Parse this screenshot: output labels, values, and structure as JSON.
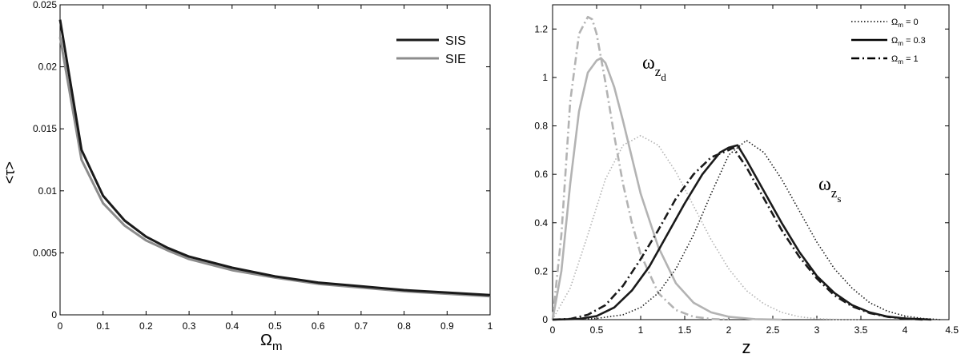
{
  "chart_data": [
    {
      "type": "line",
      "title": "",
      "xlabel": "Ω",
      "xlabel_sub": "m",
      "ylabel": "<τ>",
      "xlim": [
        0,
        1
      ],
      "ylim": [
        0,
        0.025
      ],
      "xticks": [
        0,
        0.1,
        0.2,
        0.3,
        0.4,
        0.5,
        0.6,
        0.7,
        0.8,
        0.9,
        1
      ],
      "xtick_labels": [
        "0",
        "0.1",
        "0.2",
        "0.3",
        "0.4",
        "0.5",
        "0.6",
        "0.7",
        "0.8",
        "0.9",
        "1"
      ],
      "yticks": [
        0,
        0.005,
        0.01,
        0.015,
        0.02,
        0.025
      ],
      "ytick_labels": [
        "0",
        "0.005",
        "0.01",
        "0.015",
        "0.02",
        "0.025"
      ],
      "legend_position": "top-right",
      "x": [
        0,
        0.05,
        0.1,
        0.15,
        0.2,
        0.25,
        0.3,
        0.4,
        0.5,
        0.6,
        0.7,
        0.8,
        0.9,
        1.0
      ],
      "series": [
        {
          "name": "SIS",
          "color": "#1a1a1a",
          "dash": "solid",
          "values": [
            0.0238,
            0.0133,
            0.0096,
            0.0076,
            0.0063,
            0.0054,
            0.0047,
            0.0038,
            0.0031,
            0.0026,
            0.0023,
            0.002,
            0.0018,
            0.0016
          ]
        },
        {
          "name": "SIE",
          "color": "#8c8c8c",
          "dash": "solid",
          "values": [
            0.0224,
            0.0125,
            0.009,
            0.0072,
            0.006,
            0.0052,
            0.0045,
            0.0036,
            0.003,
            0.0025,
            0.0022,
            0.0019,
            0.0017,
            0.0015
          ]
        }
      ]
    },
    {
      "type": "line",
      "title": "",
      "xlabel": "z",
      "ylabel": "",
      "xlim": [
        0,
        4.5
      ],
      "ylim": [
        0,
        1.3
      ],
      "xticks": [
        0,
        0.5,
        1,
        1.5,
        2,
        2.5,
        3,
        3.5,
        4,
        4.5
      ],
      "xtick_labels": [
        "0",
        "0.5",
        "1",
        "1.5",
        "2",
        "2.5",
        "3",
        "3.5",
        "4",
        "4.5"
      ],
      "yticks": [
        0,
        0.2,
        0.4,
        0.6,
        0.8,
        1,
        1.2
      ],
      "ytick_labels": [
        "0",
        "0.2",
        "0.4",
        "0.6",
        "0.8",
        "1",
        "1.2"
      ],
      "legend_position": "top-right",
      "legend": [
        {
          "label": "Ωm = 0",
          "prefix": "Ω",
          "sub": "m",
          "suffix": " = 0",
          "dash": "dotted"
        },
        {
          "label": "Ωm = 0.3",
          "prefix": "Ω",
          "sub": "m",
          "suffix": " = 0.3",
          "dash": "solid"
        },
        {
          "label": "Ωm = 1",
          "prefix": "Ω",
          "sub": "m",
          "suffix": " = 1",
          "dash": "dashdot"
        }
      ],
      "annotations": [
        {
          "text": "ω",
          "sub": "z",
          "subsub": "d",
          "at_x": 1.0,
          "at_y": 1.02
        },
        {
          "text": "ω",
          "sub": "z",
          "subsub": "s",
          "at_x": 3.05,
          "at_y": 0.5
        }
      ],
      "series": [
        {
          "name": "ω_zd, Ωm = 0",
          "group": "z_d",
          "color": "#b3b3b3",
          "dash": "dotted",
          "x": [
            0,
            0.2,
            0.4,
            0.6,
            0.8,
            1.0,
            1.2,
            1.4,
            1.6,
            1.8,
            2.0,
            2.2,
            2.4,
            2.6,
            2.8,
            3.0,
            3.2,
            3.5
          ],
          "y": [
            0,
            0.13,
            0.35,
            0.58,
            0.72,
            0.76,
            0.72,
            0.61,
            0.47,
            0.33,
            0.21,
            0.12,
            0.065,
            0.03,
            0.012,
            0.004,
            0.001,
            0
          ]
        },
        {
          "name": "ω_zd, Ωm = 0.3",
          "group": "z_d",
          "color": "#b3b3b3",
          "dash": "solid",
          "x": [
            0,
            0.1,
            0.2,
            0.3,
            0.4,
            0.5,
            0.55,
            0.6,
            0.7,
            0.8,
            0.9,
            1.0,
            1.2,
            1.4,
            1.6,
            1.8,
            2.0,
            2.3,
            2.6
          ],
          "y": [
            0,
            0.2,
            0.56,
            0.86,
            1.02,
            1.07,
            1.08,
            1.06,
            0.96,
            0.82,
            0.67,
            0.52,
            0.3,
            0.15,
            0.07,
            0.03,
            0.012,
            0.002,
            0
          ]
        },
        {
          "name": "ω_zd, Ωm = 1",
          "group": "z_d",
          "color": "#b3b3b3",
          "dash": "dashdot",
          "x": [
            0,
            0.1,
            0.2,
            0.3,
            0.4,
            0.45,
            0.5,
            0.6,
            0.7,
            0.8,
            0.9,
            1.0,
            1.2,
            1.4,
            1.6,
            1.8,
            2.0
          ],
          "y": [
            0,
            0.35,
            0.9,
            1.18,
            1.25,
            1.24,
            1.18,
            0.98,
            0.76,
            0.56,
            0.4,
            0.27,
            0.11,
            0.04,
            0.012,
            0.003,
            0
          ]
        },
        {
          "name": "ω_zs, Ωm = 0",
          "group": "z_s",
          "color": "#1a1a1a",
          "dash": "dotted",
          "x": [
            0,
            0.5,
            0.8,
            1.0,
            1.2,
            1.4,
            1.6,
            1.8,
            2.0,
            2.2,
            2.4,
            2.6,
            2.8,
            3.0,
            3.2,
            3.4,
            3.6,
            3.8,
            4.0,
            4.2,
            4.4
          ],
          "y": [
            0,
            0.005,
            0.02,
            0.05,
            0.11,
            0.21,
            0.35,
            0.52,
            0.68,
            0.74,
            0.69,
            0.58,
            0.45,
            0.32,
            0.21,
            0.13,
            0.07,
            0.035,
            0.015,
            0.005,
            0
          ]
        },
        {
          "name": "ω_zs, Ωm = 0.3",
          "group": "z_s",
          "color": "#1a1a1a",
          "dash": "solid",
          "x": [
            0,
            0.3,
            0.5,
            0.7,
            0.9,
            1.1,
            1.3,
            1.5,
            1.7,
            1.9,
            2.0,
            2.1,
            2.2,
            2.4,
            2.6,
            2.8,
            3.0,
            3.2,
            3.4,
            3.6,
            3.8,
            4.0,
            4.3
          ],
          "y": [
            0,
            0.003,
            0.015,
            0.05,
            0.12,
            0.22,
            0.35,
            0.48,
            0.6,
            0.69,
            0.71,
            0.72,
            0.66,
            0.53,
            0.4,
            0.28,
            0.18,
            0.11,
            0.06,
            0.03,
            0.013,
            0.005,
            0
          ]
        },
        {
          "name": "ω_zs, Ωm = 1",
          "group": "z_s",
          "color": "#1a1a1a",
          "dash": "dashdot",
          "x": [
            0,
            0.2,
            0.4,
            0.6,
            0.8,
            1.0,
            1.2,
            1.4,
            1.6,
            1.8,
            2.0,
            2.05,
            2.2,
            2.4,
            2.6,
            2.8,
            3.0,
            3.2,
            3.4,
            3.6,
            3.8,
            4.0,
            4.2
          ],
          "y": [
            0,
            0.003,
            0.02,
            0.06,
            0.14,
            0.25,
            0.37,
            0.5,
            0.6,
            0.67,
            0.7,
            0.71,
            0.63,
            0.5,
            0.37,
            0.26,
            0.17,
            0.1,
            0.055,
            0.027,
            0.012,
            0.004,
            0
          ]
        }
      ]
    }
  ]
}
